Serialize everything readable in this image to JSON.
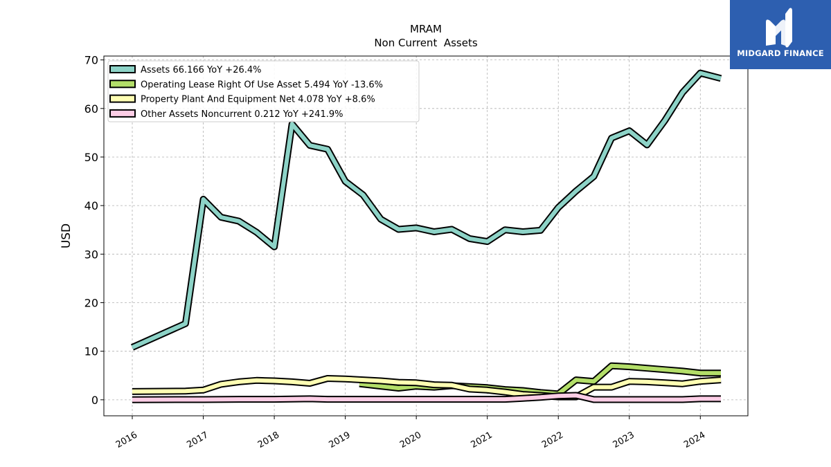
{
  "brand": {
    "name": "MIDGARD FINANCE",
    "logo_icon": "midgard-logo-icon",
    "bg_color": "#2d5fb0"
  },
  "chart_data": {
    "type": "line",
    "title": "MRAM",
    "subtitle": "Non Current  Assets",
    "xlabel": "",
    "ylabel": "USD",
    "ylim": [
      -3.3,
      70.8
    ],
    "xlim": [
      2015.6,
      2024.67
    ],
    "yticks": [
      0,
      10,
      20,
      30,
      40,
      50,
      60,
      70
    ],
    "xticks": [
      "2016",
      "2017",
      "2018",
      "2019",
      "2020",
      "2021",
      "2022",
      "2023",
      "2024"
    ],
    "grid": true,
    "legend_position": "top-left",
    "series": [
      {
        "name": "Assets",
        "legend_label": "Assets  66.166 YoY +26.4%",
        "color": "#8dd3c7",
        "points": [
          [
            2016.0,
            10.8
          ],
          [
            2016.75,
            15.7
          ],
          [
            2017.0,
            41.3
          ],
          [
            2017.25,
            37.6
          ],
          [
            2017.5,
            36.8
          ],
          [
            2017.75,
            34.5
          ],
          [
            2018.0,
            31.5
          ],
          [
            2018.25,
            56.8
          ],
          [
            2018.5,
            52.4
          ],
          [
            2018.75,
            51.6
          ],
          [
            2019.0,
            45.0
          ],
          [
            2019.25,
            42.2
          ],
          [
            2019.5,
            37.2
          ],
          [
            2019.75,
            35.1
          ],
          [
            2020.0,
            35.4
          ],
          [
            2020.25,
            34.6
          ],
          [
            2020.5,
            35.1
          ],
          [
            2020.75,
            33.2
          ],
          [
            2021.0,
            32.6
          ],
          [
            2021.25,
            35.0
          ],
          [
            2021.5,
            34.6
          ],
          [
            2021.75,
            34.9
          ],
          [
            2022.0,
            39.6
          ],
          [
            2022.25,
            43.0
          ],
          [
            2022.5,
            46.0
          ],
          [
            2022.75,
            53.9
          ],
          [
            2023.0,
            55.4
          ],
          [
            2023.25,
            52.5
          ],
          [
            2023.5,
            57.5
          ],
          [
            2023.75,
            63.3
          ],
          [
            2024.0,
            67.3
          ],
          [
            2024.29,
            66.2
          ]
        ]
      },
      {
        "name": "Operating Lease Right Of Use Asset",
        "legend_label": "Operating Lease Right Of Use Asset  5.494 YoY -13.6%",
        "color": "#b3de69",
        "points": [
          [
            2019.2,
            3.3
          ],
          [
            2019.5,
            2.8
          ],
          [
            2019.75,
            2.4
          ],
          [
            2020.0,
            2.8
          ],
          [
            2020.25,
            2.6
          ],
          [
            2020.5,
            2.9
          ],
          [
            2020.75,
            2.7
          ],
          [
            2021.0,
            2.5
          ],
          [
            2021.25,
            2.1
          ],
          [
            2021.5,
            1.9
          ],
          [
            2021.75,
            1.5
          ],
          [
            2022.0,
            1.2
          ],
          [
            2022.25,
            4.1
          ],
          [
            2022.5,
            3.8
          ],
          [
            2022.75,
            7.0
          ],
          [
            2023.0,
            6.8
          ],
          [
            2023.25,
            6.5
          ],
          [
            2023.5,
            6.2
          ],
          [
            2023.75,
            5.9
          ],
          [
            2024.0,
            5.5
          ],
          [
            2024.29,
            5.5
          ]
        ]
      },
      {
        "name": "Property Plant And Equipment Net",
        "legend_label": "Property Plant And Equipment Net  4.078 YoY +8.6%",
        "color": "#ffffb3",
        "points": [
          [
            2016.0,
            1.7
          ],
          [
            2016.75,
            1.8
          ],
          [
            2017.0,
            2.0
          ],
          [
            2017.25,
            3.2
          ],
          [
            2017.5,
            3.7
          ],
          [
            2017.75,
            4.0
          ],
          [
            2018.0,
            3.9
          ],
          [
            2018.25,
            3.7
          ],
          [
            2018.5,
            3.4
          ],
          [
            2018.75,
            4.4
          ],
          [
            2019.0,
            4.3
          ],
          [
            2019.25,
            4.1
          ],
          [
            2019.5,
            3.9
          ],
          [
            2019.75,
            3.6
          ],
          [
            2020.0,
            3.5
          ],
          [
            2020.25,
            3.1
          ],
          [
            2020.5,
            3.0
          ],
          [
            2020.75,
            2.2
          ],
          [
            2021.0,
            2.0
          ],
          [
            2021.25,
            1.6
          ],
          [
            2021.5,
            1.1
          ],
          [
            2021.75,
            0.9
          ],
          [
            2022.0,
            0.6
          ],
          [
            2022.25,
            0.6
          ],
          [
            2022.5,
            2.6
          ],
          [
            2022.75,
            2.6
          ],
          [
            2023.0,
            3.8
          ],
          [
            2023.25,
            3.7
          ],
          [
            2023.5,
            3.5
          ],
          [
            2023.75,
            3.3
          ],
          [
            2024.0,
            3.8
          ],
          [
            2024.29,
            4.1
          ]
        ]
      },
      {
        "name": "Other Assets Noncurrent",
        "legend_label": "Other Assets Noncurrent  0.212 YoY +241.9%",
        "color": "#fccde5",
        "points": [
          [
            2016.0,
            0.0
          ],
          [
            2016.75,
            0.05
          ],
          [
            2017.0,
            0.05
          ],
          [
            2017.5,
            0.1
          ],
          [
            2018.0,
            0.1
          ],
          [
            2018.25,
            0.15
          ],
          [
            2018.5,
            0.2
          ],
          [
            2018.75,
            0.1
          ],
          [
            2019.5,
            0.1
          ],
          [
            2020.0,
            0.1
          ],
          [
            2020.5,
            0.1
          ],
          [
            2021.0,
            0.1
          ],
          [
            2021.25,
            0.1
          ],
          [
            2021.5,
            0.3
          ],
          [
            2021.75,
            0.5
          ],
          [
            2022.0,
            0.8
          ],
          [
            2022.25,
            0.9
          ],
          [
            2022.5,
            0.05
          ],
          [
            2022.75,
            0.05
          ],
          [
            2023.0,
            0.05
          ],
          [
            2023.5,
            0.05
          ],
          [
            2023.75,
            0.05
          ],
          [
            2024.0,
            0.2
          ],
          [
            2024.29,
            0.2
          ]
        ]
      }
    ]
  }
}
